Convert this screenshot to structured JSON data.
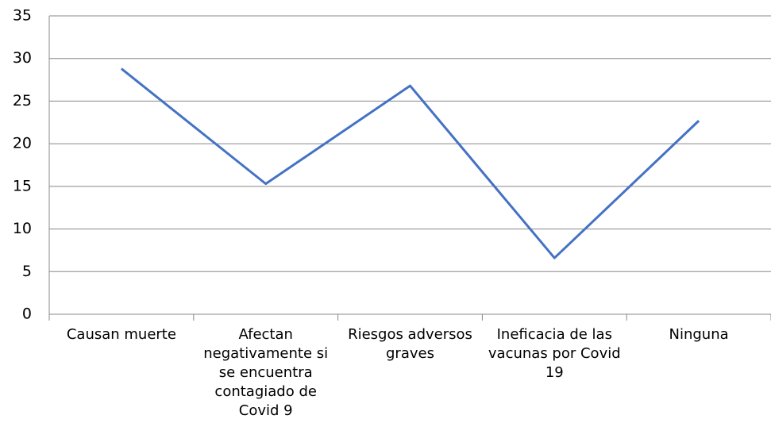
{
  "chart_data": {
    "type": "line",
    "categories": [
      "Causan muerte",
      "Afectan negativamente si se encuentra contagiado de Covid 9",
      "Riesgos adversos graves",
      "Ineficacia de las vacunas por Covid 19",
      "Ninguna"
    ],
    "series": [
      {
        "name": null,
        "color": "#4472c4",
        "values": [
          28.8,
          15.3,
          26.8,
          6.6,
          22.7
        ]
      }
    ],
    "ylim": [
      0,
      35
    ],
    "yticks": [
      0,
      5,
      10,
      15,
      20,
      25,
      30,
      35
    ],
    "grid": true
  }
}
